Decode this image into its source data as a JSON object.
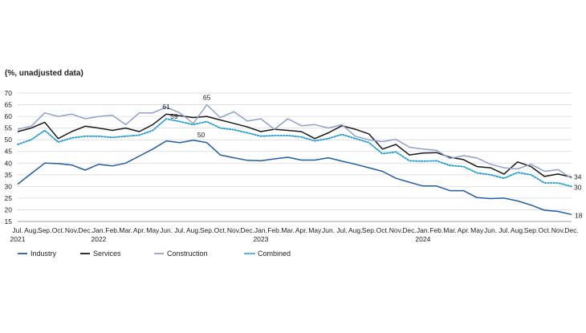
{
  "chart_data": {
    "type": "line",
    "units_note": "(%, unadjusted data)",
    "ylim": [
      15,
      70
    ],
    "yticks": [
      15,
      20,
      25,
      30,
      35,
      40,
      45,
      50,
      55,
      60,
      65,
      70
    ],
    "grid": "horizontal",
    "legend_position": "bottom-left",
    "x_month_labels": [
      "Jul.",
      "Aug.",
      "Sep.",
      "Oct.",
      "Nov.",
      "Dec.",
      "Jan.",
      "Feb.",
      "Mar.",
      "Apr.",
      "May",
      "Jun.",
      "Jul.",
      "Aug.",
      "Sep.",
      "Oct.",
      "Nov.",
      "Dec.",
      "Jan.",
      "Feb.",
      "Mar.",
      "Apr.",
      "May",
      "Jun.",
      "Jul.",
      "Aug.",
      "Sep.",
      "Oct.",
      "Nov.",
      "Dec.",
      "Jan.",
      "Feb.",
      "Mar.",
      "Apr.",
      "May",
      "Jun.",
      "Jul.",
      "Aug.",
      "Sep.",
      "Oct.",
      "Nov.",
      "Dec."
    ],
    "x_year_labels": [
      {
        "index": 0,
        "label": "2021"
      },
      {
        "index": 6,
        "label": "2022"
      },
      {
        "index": 18,
        "label": "2023"
      },
      {
        "index": 30,
        "label": "2024"
      }
    ],
    "series": [
      {
        "name": "Industry",
        "color": "#1f5ea8",
        "style": "solid",
        "values": [
          31,
          35.5,
          40,
          39.8,
          39.2,
          37,
          39.5,
          38.8,
          40,
          43,
          46,
          49.5,
          48.8,
          49.8,
          48.8,
          43.5,
          42.3,
          41.2,
          41,
          41.8,
          42.5,
          41.3,
          41.3,
          42.3,
          40.8,
          39.5,
          38,
          36.5,
          33.5,
          31.8,
          30.2,
          30.2,
          28.2,
          28.2,
          25.2,
          24.8,
          25,
          23.8,
          22,
          19.8,
          19.3,
          18
        ]
      },
      {
        "name": "Services",
        "color": "#1a1a1a",
        "style": "solid",
        "values": [
          53.5,
          55,
          57.5,
          50.5,
          53.5,
          55.8,
          55,
          54,
          55,
          53.5,
          56.5,
          61,
          60.3,
          59.5,
          60,
          58.5,
          57,
          55.5,
          53.5,
          54.5,
          54,
          53.5,
          50.5,
          53,
          56,
          54.5,
          52.5,
          46,
          48,
          43.5,
          44.3,
          44.5,
          42.5,
          41.5,
          38.5,
          38,
          35.3,
          40.5,
          38.5,
          34.3,
          35.3,
          34
        ]
      },
      {
        "name": "Construction",
        "color": "#8fa2cc",
        "style": "solid",
        "values": [
          54.5,
          55.8,
          61.5,
          60,
          61,
          59,
          60,
          60.5,
          56.5,
          61.5,
          61.5,
          64,
          61.5,
          57,
          65,
          59.5,
          62,
          58,
          59,
          54.5,
          59,
          56,
          56.5,
          55,
          56.5,
          51.5,
          50,
          49.2,
          50.2,
          46.8,
          46,
          45.5,
          42,
          43.2,
          42.2,
          39.5,
          38,
          37.5,
          39.5,
          36.5,
          37.2,
          33.5
        ]
      },
      {
        "name": "Combined",
        "color": "#1b9bd7",
        "style": "dotted",
        "values": [
          48,
          50,
          54,
          49,
          50.8,
          51.5,
          51.5,
          51,
          51.5,
          52,
          54,
          59,
          57.8,
          56.5,
          57.8,
          55,
          54.3,
          53,
          51.5,
          51.8,
          51.8,
          51.2,
          49.5,
          50.5,
          52.3,
          50.5,
          48.8,
          44,
          44.8,
          41,
          40.8,
          41,
          39,
          38.5,
          35.8,
          35,
          33.5,
          36,
          35,
          31.5,
          31.5,
          30
        ]
      }
    ],
    "annotations": [
      {
        "text": "61",
        "series": "Services",
        "index": 11
      },
      {
        "text": "59",
        "series": "Combined",
        "index": 11
      },
      {
        "text": "65",
        "series": "Construction",
        "index": 14
      },
      {
        "text": "50",
        "series": "Industry",
        "index": 13
      },
      {
        "text": "34",
        "series": "Services",
        "index": 41
      },
      {
        "text": "30",
        "series": "Combined",
        "index": 41
      },
      {
        "text": "18",
        "series": "Industry",
        "index": 41
      }
    ]
  }
}
